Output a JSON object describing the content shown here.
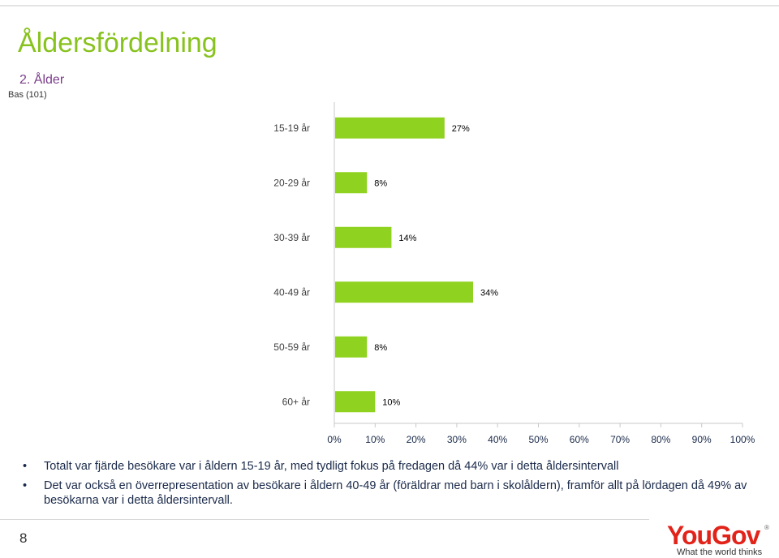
{
  "slide": {
    "title": "Åldersfördelning",
    "question": "2. Ålder",
    "base": "Bas (101)",
    "page_number": "8",
    "bullets": [
      "Totalt var fjärde besökare var i åldern 15-19 år, med tydligt fokus på fredagen då 44% var i detta åldersintervall",
      "Det var också en överrepresentation av besökare i åldern 40-49 år (föräldrar med barn i skolåldern), framför allt på lördagen då 49% av besökarna var i detta åldersintervall."
    ],
    "bullet_symbol": "•"
  },
  "logo": {
    "name": "YouGov",
    "registered": "®",
    "tagline": "What the world thinks"
  },
  "colors": {
    "title": "#88c21e",
    "question": "#7a3d8a",
    "bar": "#8fd21f",
    "axis_text": "#1a2a4a",
    "logo": "#e2231a"
  },
  "chart_data": {
    "type": "bar",
    "orientation": "horizontal",
    "categories": [
      "15-19 år",
      "20-29 år",
      "30-39 år",
      "40-49 år",
      "50-59 år",
      "60+ år"
    ],
    "values": [
      27,
      8,
      14,
      34,
      8,
      10
    ],
    "value_labels": [
      "27%",
      "8%",
      "14%",
      "34%",
      "8%",
      "10%"
    ],
    "xlim": [
      0,
      100
    ],
    "x_ticks": [
      0,
      10,
      20,
      30,
      40,
      50,
      60,
      70,
      80,
      90,
      100
    ],
    "x_tick_labels": [
      "0%",
      "10%",
      "20%",
      "30%",
      "40%",
      "50%",
      "60%",
      "70%",
      "80%",
      "90%",
      "100%"
    ],
    "grid": false,
    "legend": "none"
  }
}
